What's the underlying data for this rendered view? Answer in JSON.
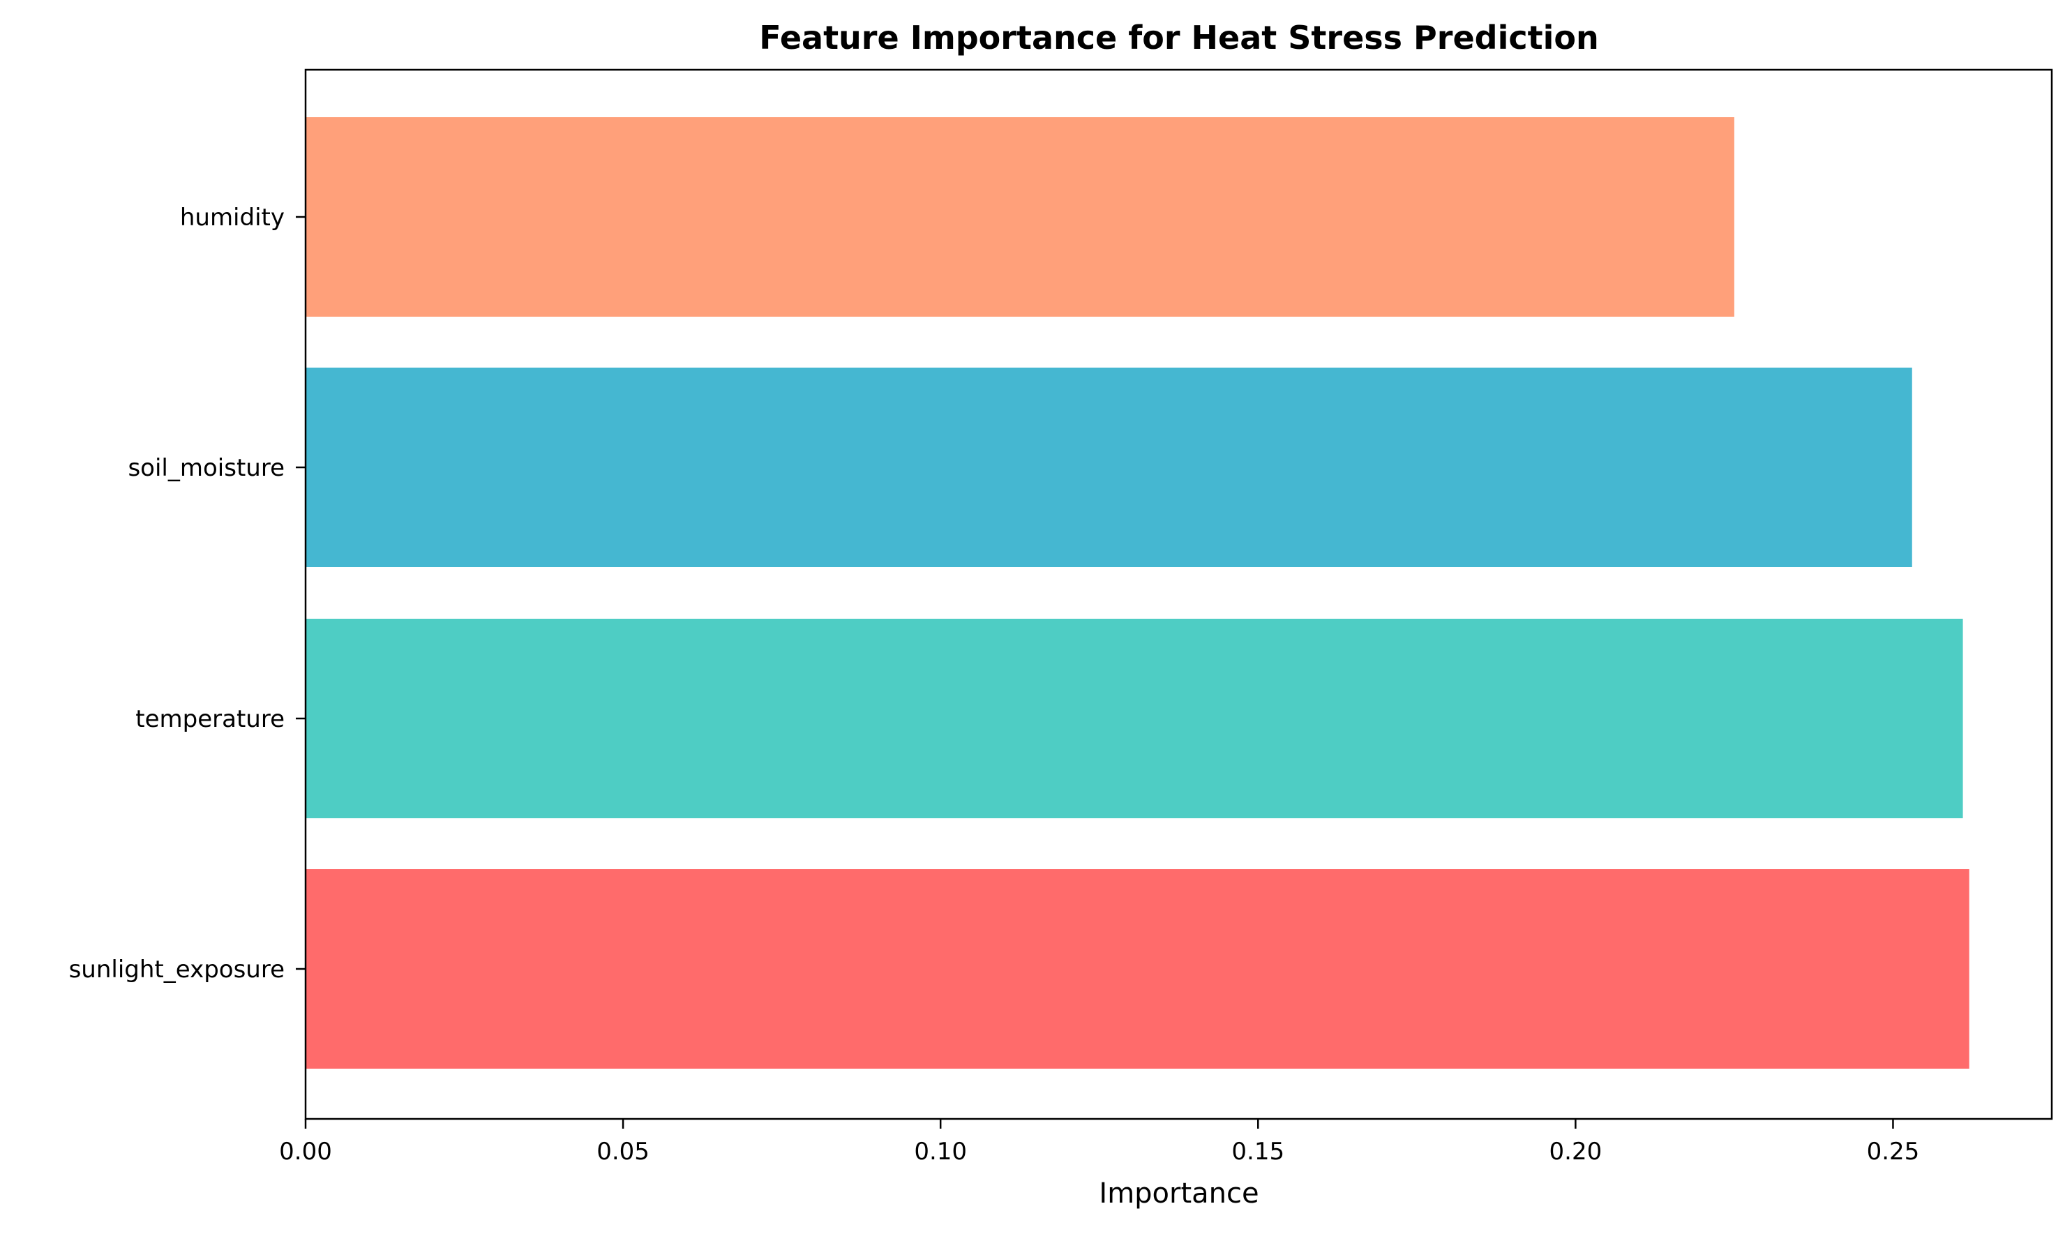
{
  "chart_data": {
    "type": "bar",
    "orientation": "horizontal",
    "title": "Feature Importance for Heat Stress Prediction",
    "xlabel": "Importance",
    "ylabel": "",
    "xlim": [
      0,
      0.275
    ],
    "xticks": [
      0.0,
      0.05,
      0.1,
      0.15,
      0.2,
      0.25
    ],
    "xtick_labels": [
      "0.00",
      "0.05",
      "0.10",
      "0.15",
      "0.20",
      "0.25"
    ],
    "categories": [
      "sunlight_exposure",
      "temperature",
      "soil_moisture",
      "humidity"
    ],
    "values": [
      0.262,
      0.261,
      0.253,
      0.225
    ],
    "colors": [
      "#FF6B6B",
      "#4ECDC4",
      "#45B7D1",
      "#FFA07A"
    ],
    "grid": false,
    "legend": "none"
  }
}
